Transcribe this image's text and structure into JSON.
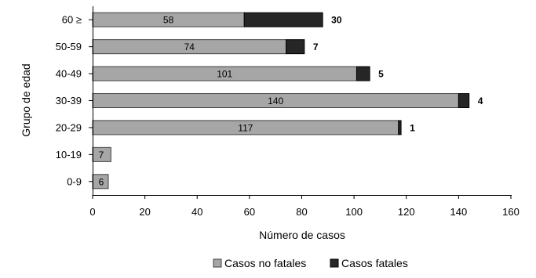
{
  "chart_data": {
    "type": "bar",
    "orientation": "horizontal",
    "stacked": true,
    "categories": [
      "60 ≥",
      "50-59",
      "40-49",
      "30-39",
      "20-29",
      "10-19",
      "0-9"
    ],
    "series": [
      {
        "name": "Casos no fatales",
        "values": [
          58,
          74,
          101,
          140,
          117,
          7,
          6
        ],
        "color": "#a6a6a6",
        "labels": [
          "58",
          "74",
          "101",
          "140",
          "117",
          "7",
          "6"
        ]
      },
      {
        "name": "Casos fatales",
        "values": [
          30,
          7,
          5,
          4,
          1,
          0,
          0
        ],
        "color": "#262626",
        "labels": [
          "30",
          "7",
          "5",
          "4",
          "1",
          "",
          ""
        ]
      }
    ],
    "xlabel": "Número de casos",
    "ylabel": "Grupo de edad",
    "xlim": [
      0,
      160
    ],
    "xticks": [
      0,
      20,
      40,
      60,
      80,
      100,
      120,
      140,
      160
    ],
    "xtick_labels": [
      "0",
      "20",
      "40",
      "60",
      "80",
      "100",
      "120",
      "140",
      "160"
    ],
    "grid": false,
    "legend_position": "bottom"
  }
}
